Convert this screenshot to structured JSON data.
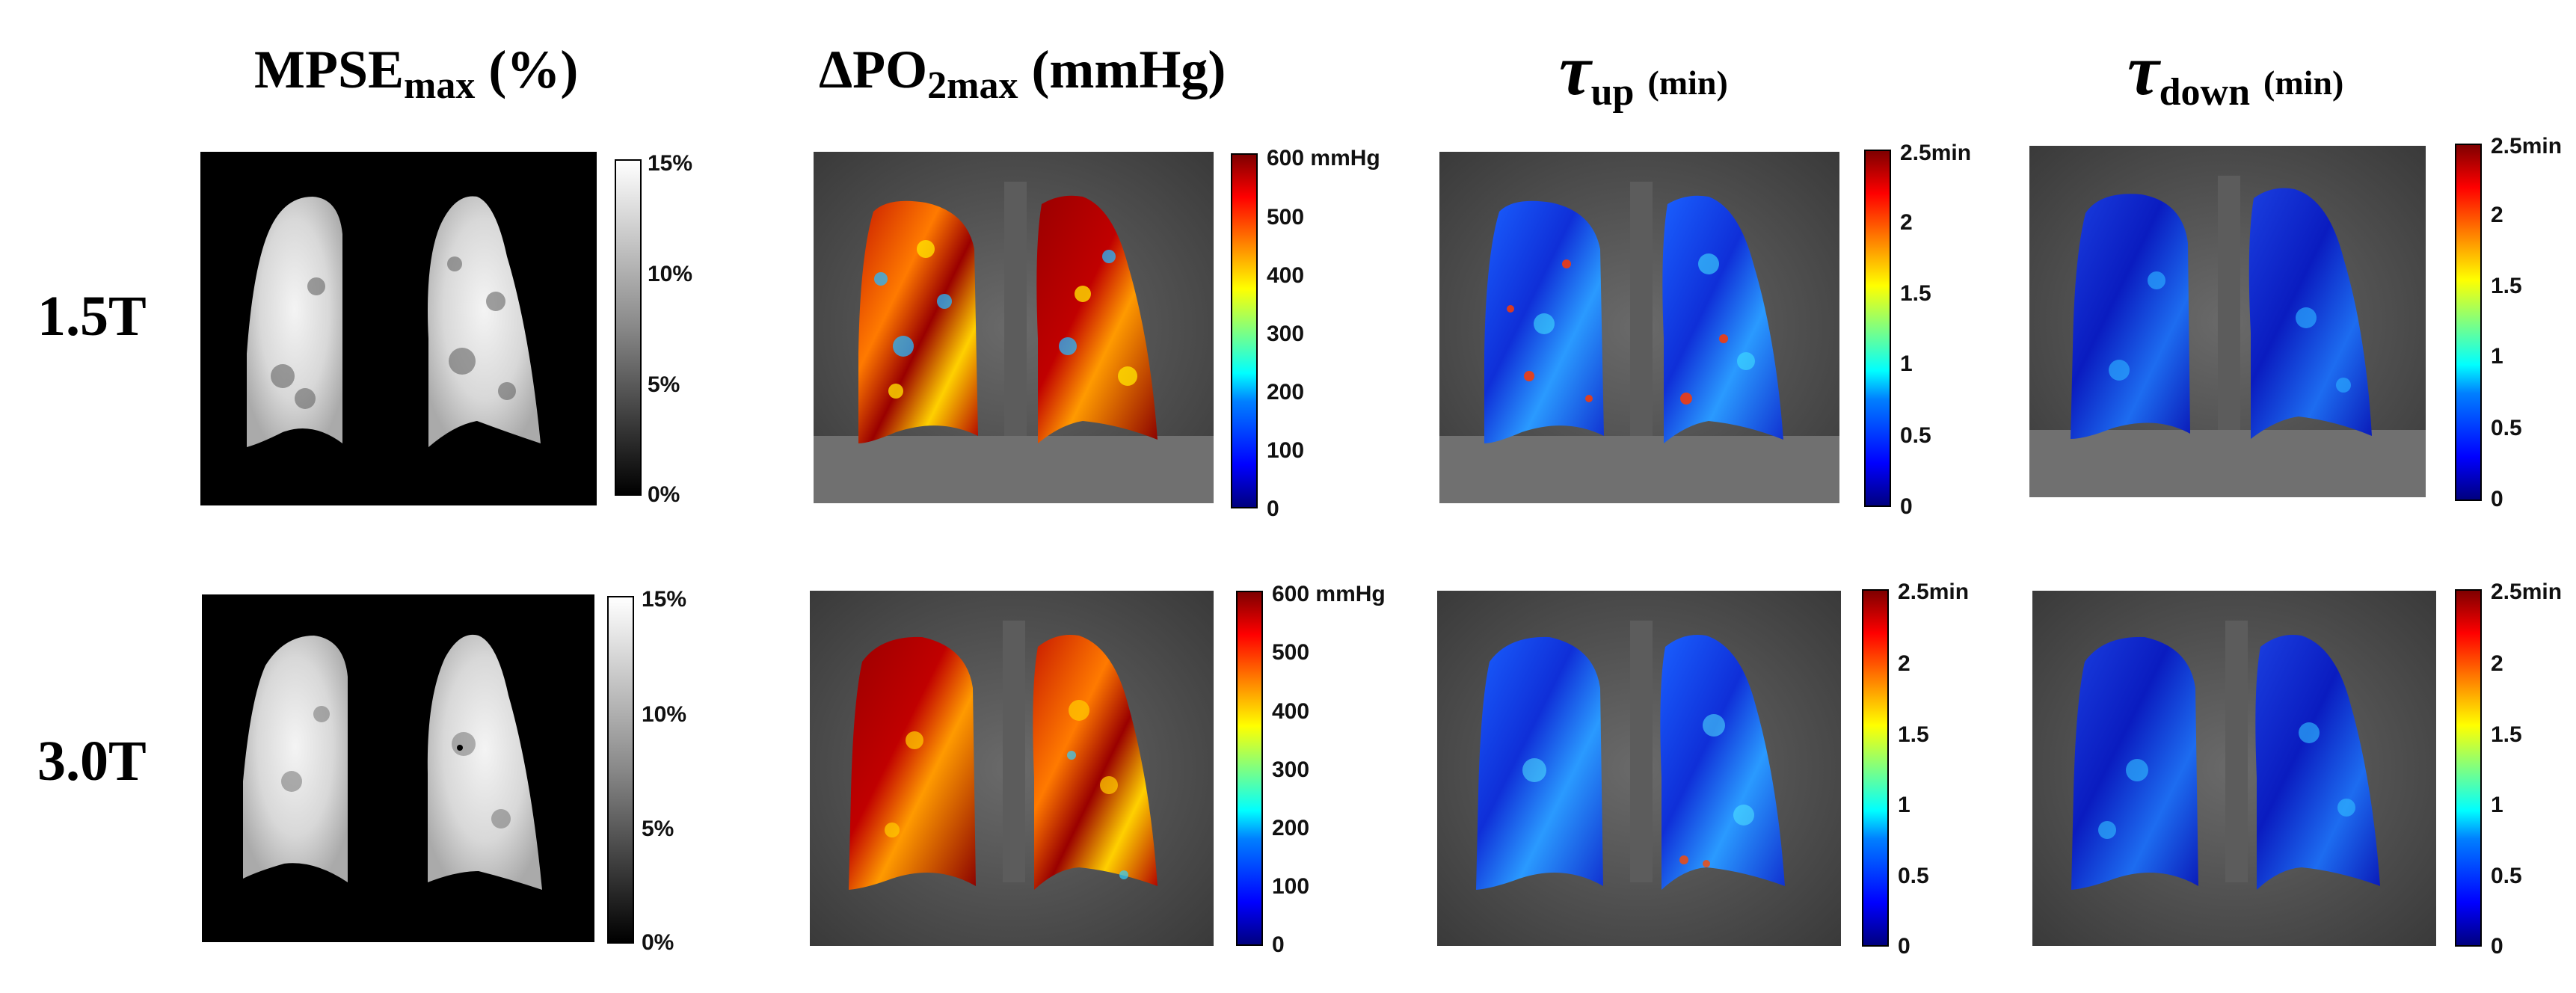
{
  "columns": {
    "mpse": {
      "main": "MPSE",
      "sub": "max",
      "unit": "(%)"
    },
    "dpo2": {
      "main": "ΔPO",
      "sub": "2max",
      "unit": "(mmHg)"
    },
    "tau_up": {
      "symbol": "τ",
      "sub": "up",
      "unit": "(min)"
    },
    "tau_down": {
      "symbol": "τ",
      "sub": "down",
      "unit": "(min)"
    }
  },
  "rows": {
    "r1": "1.5T",
    "r2": "3.0T"
  },
  "scales": {
    "mpse": {
      "max": "15%",
      "t2": "10%",
      "t3": "5%",
      "min": "0%"
    },
    "dpo2": {
      "max": "600 mmHg",
      "t500": "500",
      "t400": "400",
      "t300": "300",
      "t200": "200",
      "t100": "100",
      "min": "0"
    },
    "tau": {
      "max": "2.5min",
      "t2": "2",
      "t15": "1.5",
      "t1": "1",
      "t05": "0.5",
      "min": "0"
    }
  },
  "colors": {
    "background": "#ffffff",
    "text": "#000000"
  }
}
